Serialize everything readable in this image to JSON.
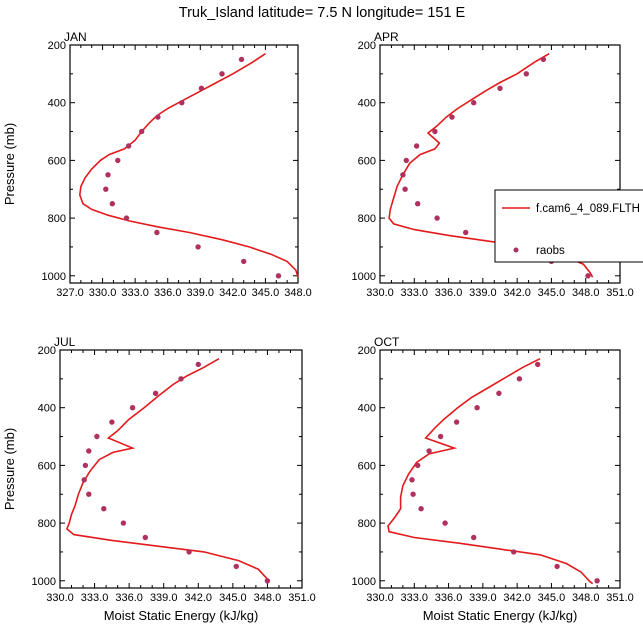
{
  "figure": {
    "title": "Truk_Island  latitude= 7.5 N longitude= 151 E"
  },
  "colors": {
    "model": "#e31a1c",
    "obs": "#b03060",
    "axis": "#000000"
  },
  "legend": {
    "model_label": "f.cam6_4_089.FLTH",
    "obs_label": "raobs",
    "placement": "right-middle, overlapping APR panel"
  },
  "chart_data": [
    {
      "type": "line",
      "panel": "JAN",
      "xlabel": "",
      "ylabel": "Pressure (mb)",
      "xlim": [
        327,
        348
      ],
      "xticks": [
        "327.0",
        "330.0",
        "333.0",
        "336.0",
        "339.0",
        "342.0",
        "345.0",
        "348.0"
      ],
      "ylim": [
        1025,
        200
      ],
      "yticks": [
        200,
        400,
        600,
        800,
        1000
      ],
      "series": [
        {
          "style": "line",
          "points": [
            [
              345.0,
              230
            ],
            [
              343.8,
              260
            ],
            [
              342.0,
              300
            ],
            [
              340.5,
              330
            ],
            [
              339.0,
              360
            ],
            [
              337.5,
              390
            ],
            [
              336.0,
              420
            ],
            [
              335.0,
              445
            ],
            [
              334.3,
              470
            ],
            [
              333.6,
              500
            ],
            [
              333.0,
              530
            ],
            [
              332.0,
              560
            ],
            [
              330.6,
              580
            ],
            [
              329.8,
              600
            ],
            [
              329.0,
              630
            ],
            [
              328.4,
              660
            ],
            [
              328.0,
              690
            ],
            [
              327.9,
              720
            ],
            [
              328.2,
              750
            ],
            [
              329.0,
              770
            ],
            [
              330.5,
              790
            ],
            [
              332.5,
              810
            ],
            [
              335.0,
              830
            ],
            [
              338.0,
              850
            ],
            [
              341.0,
              875
            ],
            [
              343.5,
              900
            ],
            [
              345.5,
              925
            ],
            [
              347.0,
              950
            ],
            [
              347.8,
              980
            ],
            [
              348.0,
              1005
            ]
          ]
        },
        {
          "style": "marker",
          "points": [
            [
              342.8,
              250
            ],
            [
              341.0,
              300
            ],
            [
              339.1,
              350
            ],
            [
              337.3,
              400
            ],
            [
              335.1,
              450
            ],
            [
              333.6,
              500
            ],
            [
              332.4,
              550
            ],
            [
              331.4,
              600
            ],
            [
              330.5,
              650
            ],
            [
              330.3,
              700
            ],
            [
              330.9,
              750
            ],
            [
              332.2,
              800
            ],
            [
              335.0,
              850
            ],
            [
              338.8,
              900
            ],
            [
              343.0,
              950
            ],
            [
              346.2,
              1000
            ]
          ]
        }
      ]
    },
    {
      "type": "line",
      "panel": "APR",
      "xlabel": "",
      "ylabel": "",
      "xlim": [
        330,
        351
      ],
      "xticks": [
        "330.0",
        "333.0",
        "336.0",
        "339.0",
        "342.0",
        "345.0",
        "348.0",
        "351.0"
      ],
      "ylim": [
        1025,
        200
      ],
      "yticks": [
        200,
        400,
        600,
        800,
        1000
      ],
      "series": [
        {
          "style": "line",
          "points": [
            [
              344.8,
              230
            ],
            [
              343.5,
              260
            ],
            [
              342.0,
              300
            ],
            [
              340.5,
              330
            ],
            [
              339.2,
              360
            ],
            [
              338.0,
              390
            ],
            [
              336.8,
              420
            ],
            [
              335.8,
              450
            ],
            [
              335.0,
              480
            ],
            [
              334.2,
              505
            ],
            [
              335.2,
              540
            ],
            [
              334.8,
              560
            ],
            [
              333.5,
              580
            ],
            [
              332.6,
              610
            ],
            [
              332.0,
              650
            ],
            [
              331.5,
              690
            ],
            [
              331.2,
              730
            ],
            [
              330.9,
              770
            ],
            [
              330.8,
              800
            ],
            [
              331.2,
              820
            ],
            [
              333.0,
              840
            ],
            [
              336.0,
              860
            ],
            [
              339.5,
              880
            ],
            [
              343.0,
              900
            ],
            [
              346.0,
              930
            ],
            [
              347.8,
              960
            ],
            [
              348.4,
              990
            ],
            [
              348.6,
              1005
            ]
          ]
        },
        {
          "style": "marker",
          "points": [
            [
              344.3,
              250
            ],
            [
              342.8,
              300
            ],
            [
              340.5,
              350
            ],
            [
              338.2,
              400
            ],
            [
              336.3,
              450
            ],
            [
              334.8,
              500
            ],
            [
              333.2,
              550
            ],
            [
              332.3,
              600
            ],
            [
              332.0,
              650
            ],
            [
              332.2,
              700
            ],
            [
              333.3,
              750
            ],
            [
              335.0,
              800
            ],
            [
              337.5,
              850
            ],
            [
              340.3,
              900
            ],
            [
              345.0,
              950
            ],
            [
              348.2,
              1000
            ]
          ]
        }
      ]
    },
    {
      "type": "line",
      "panel": "JUL",
      "xlabel": "Moist Static Energy (kJ/kg)",
      "ylabel": "Pressure (mb)",
      "xlim": [
        330,
        351
      ],
      "xticks": [
        "330.0",
        "333.0",
        "336.0",
        "339.0",
        "342.0",
        "345.0",
        "348.0",
        "351.0"
      ],
      "ylim": [
        1025,
        200
      ],
      "yticks": [
        200,
        400,
        600,
        800,
        1000
      ],
      "series": [
        {
          "style": "line",
          "points": [
            [
              343.8,
              230
            ],
            [
              342.5,
              260
            ],
            [
              341.0,
              290
            ],
            [
              339.8,
              320
            ],
            [
              338.5,
              360
            ],
            [
              337.3,
              400
            ],
            [
              336.0,
              440
            ],
            [
              335.0,
              480
            ],
            [
              334.2,
              505
            ],
            [
              336.3,
              540
            ],
            [
              334.6,
              555
            ],
            [
              333.4,
              580
            ],
            [
              332.6,
              620
            ],
            [
              332.0,
              660
            ],
            [
              331.6,
              700
            ],
            [
              331.3,
              740
            ],
            [
              331.0,
              770
            ],
            [
              330.8,
              800
            ],
            [
              330.6,
              820
            ],
            [
              331.2,
              840
            ],
            [
              334.5,
              860
            ],
            [
              338.5,
              880
            ],
            [
              342.5,
              900
            ],
            [
              345.5,
              930
            ],
            [
              347.2,
              960
            ],
            [
              347.9,
              990
            ],
            [
              348.1,
              1005
            ]
          ]
        },
        {
          "style": "marker",
          "points": [
            [
              342.0,
              250
            ],
            [
              340.5,
              300
            ],
            [
              338.3,
              350
            ],
            [
              336.3,
              400
            ],
            [
              334.5,
              450
            ],
            [
              333.2,
              500
            ],
            [
              332.5,
              550
            ],
            [
              332.2,
              600
            ],
            [
              332.1,
              650
            ],
            [
              332.5,
              700
            ],
            [
              333.8,
              750
            ],
            [
              335.5,
              800
            ],
            [
              337.4,
              850
            ],
            [
              341.2,
              900
            ],
            [
              345.3,
              950
            ],
            [
              348.0,
              1000
            ]
          ]
        }
      ]
    },
    {
      "type": "line",
      "panel": "OCT",
      "xlabel": "Moist Static Energy (kJ/kg)",
      "ylabel": "",
      "xlim": [
        330,
        351
      ],
      "xticks": [
        "330.0",
        "333.0",
        "336.0",
        "339.0",
        "342.0",
        "345.0",
        "348.0",
        "351.0"
      ],
      "ylim": [
        1025,
        200
      ],
      "yticks": [
        200,
        400,
        600,
        800,
        1000
      ],
      "series": [
        {
          "style": "line",
          "points": [
            [
              344.0,
              230
            ],
            [
              342.5,
              260
            ],
            [
              341.0,
              295
            ],
            [
              339.5,
              330
            ],
            [
              338.0,
              365
            ],
            [
              336.8,
              400
            ],
            [
              335.6,
              440
            ],
            [
              334.8,
              470
            ],
            [
              334.0,
              505
            ],
            [
              336.5,
              540
            ],
            [
              334.3,
              560
            ],
            [
              333.2,
              590
            ],
            [
              332.5,
              630
            ],
            [
              332.0,
              670
            ],
            [
              331.8,
              710
            ],
            [
              331.8,
              750
            ],
            [
              331.3,
              780
            ],
            [
              330.7,
              810
            ],
            [
              330.8,
              830
            ],
            [
              333.0,
              850
            ],
            [
              337.0,
              870
            ],
            [
              340.5,
              890
            ],
            [
              344.0,
              910
            ],
            [
              346.3,
              940
            ],
            [
              347.6,
              970
            ],
            [
              348.3,
              1000
            ],
            [
              348.6,
              1010
            ]
          ]
        },
        {
          "style": "marker",
          "points": [
            [
              343.8,
              250
            ],
            [
              342.2,
              300
            ],
            [
              340.4,
              350
            ],
            [
              338.5,
              400
            ],
            [
              336.7,
              450
            ],
            [
              335.3,
              500
            ],
            [
              334.3,
              550
            ],
            [
              333.3,
              600
            ],
            [
              332.8,
              650
            ],
            [
              332.9,
              700
            ],
            [
              333.6,
              750
            ],
            [
              335.7,
              800
            ],
            [
              338.2,
              850
            ],
            [
              341.7,
              900
            ],
            [
              345.5,
              950
            ],
            [
              349.0,
              1000
            ]
          ]
        }
      ]
    }
  ]
}
